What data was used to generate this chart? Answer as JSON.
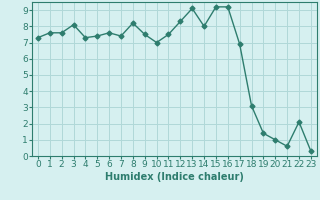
{
  "x": [
    0,
    1,
    2,
    3,
    4,
    5,
    6,
    7,
    8,
    9,
    10,
    11,
    12,
    13,
    14,
    15,
    16,
    17,
    18,
    19,
    20,
    21,
    22,
    23
  ],
  "y": [
    7.3,
    7.6,
    7.6,
    8.1,
    7.3,
    7.4,
    7.6,
    7.4,
    8.2,
    7.5,
    7.0,
    7.5,
    8.3,
    9.1,
    8.0,
    9.2,
    9.2,
    6.9,
    3.1,
    1.4,
    1.0,
    0.6,
    2.1,
    0.3
  ],
  "line_color": "#2e7d6e",
  "marker": "D",
  "marker_size": 2.5,
  "bg_color": "#d6f0f0",
  "grid_color": "#b0d8d8",
  "xlabel": "Humidex (Indice chaleur)",
  "xlim": [
    -0.5,
    23.5
  ],
  "ylim": [
    0,
    9.5
  ],
  "yticks": [
    0,
    1,
    2,
    3,
    4,
    5,
    6,
    7,
    8,
    9
  ],
  "xticks": [
    0,
    1,
    2,
    3,
    4,
    5,
    6,
    7,
    8,
    9,
    10,
    11,
    12,
    13,
    14,
    15,
    16,
    17,
    18,
    19,
    20,
    21,
    22,
    23
  ],
  "label_fontsize": 7,
  "tick_fontsize": 6.5
}
